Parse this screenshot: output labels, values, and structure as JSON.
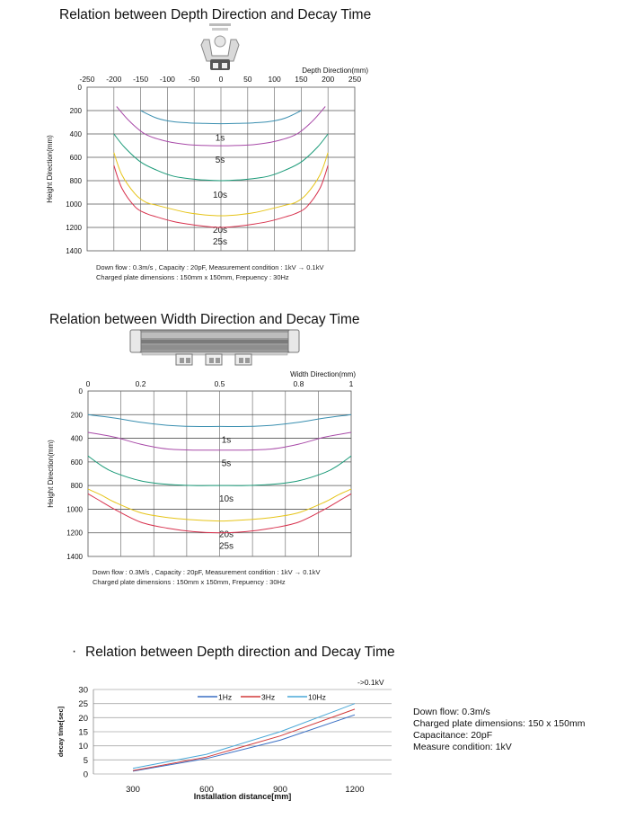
{
  "chart_data": [
    {
      "type": "line",
      "title": "Relation between Depth Direction and Decay Time",
      "xlabel": "Depth Direction(mm)",
      "ylabel": "Height Direction(mm)",
      "xlim": [
        -250,
        250
      ],
      "ylim": [
        0,
        1400
      ],
      "y_inverted": true,
      "x_ticks": [
        -250,
        -200,
        -150,
        -100,
        -50,
        0,
        50,
        100,
        150,
        200,
        250
      ],
      "y_ticks": [
        0,
        200,
        400,
        600,
        800,
        1000,
        1200,
        1400
      ],
      "grid": true,
      "notes": [
        "Down flow : 0.3m/s , Capacity : 20pF, Measurement condition : 1kV → 0.1kV",
        "Charged plate dimensions : 150mm x 150mm, Frepuency : 30Hz"
      ],
      "series": [
        {
          "name": "1s",
          "color": "#3a8fb0",
          "x": [
            -150,
            -120,
            -90,
            -60,
            -30,
            0,
            30,
            60,
            90,
            120,
            150
          ],
          "y": [
            200,
            265,
            295,
            305,
            310,
            312,
            310,
            305,
            295,
            265,
            200
          ]
        },
        {
          "name": "5s",
          "color": "#a84aa8",
          "x": [
            -195,
            -170,
            -140,
            -100,
            -60,
            -20,
            20,
            60,
            100,
            140,
            170,
            195
          ],
          "y": [
            165,
            295,
            405,
            465,
            492,
            500,
            500,
            492,
            465,
            405,
            295,
            165
          ]
        },
        {
          "name": "10s",
          "color": "#1a9a78",
          "x": [
            -200,
            -180,
            -150,
            -120,
            -90,
            -60,
            -30,
            0,
            30,
            60,
            90,
            120,
            150,
            180,
            200
          ],
          "y": [
            400,
            515,
            640,
            710,
            760,
            782,
            795,
            800,
            795,
            782,
            760,
            710,
            640,
            515,
            400
          ]
        },
        {
          "name": "20s",
          "color": "#e6c419",
          "x": [
            -200,
            -185,
            -160,
            -140,
            -120,
            -90,
            -60,
            -30,
            0,
            30,
            60,
            90,
            120,
            140,
            160,
            185,
            200
          ],
          "y": [
            560,
            750,
            915,
            985,
            1010,
            1045,
            1075,
            1093,
            1100,
            1093,
            1075,
            1045,
            1010,
            985,
            915,
            750,
            560
          ]
        },
        {
          "name": "25s",
          "color": "#d8324e",
          "x": [
            -200,
            -185,
            -160,
            -140,
            -120,
            -90,
            -60,
            -30,
            0,
            30,
            60,
            90,
            120,
            140,
            160,
            185,
            200
          ],
          "y": [
            670,
            865,
            1025,
            1080,
            1110,
            1148,
            1172,
            1190,
            1200,
            1190,
            1172,
            1148,
            1110,
            1080,
            1025,
            865,
            670
          ]
        }
      ]
    },
    {
      "type": "line",
      "title": "Relation between Width Direction and Decay Time",
      "xlabel": "Width Direction(mm)",
      "ylabel": "Height Direction(mm)",
      "xlim": [
        0,
        1
      ],
      "ylim": [
        0,
        1400
      ],
      "y_inverted": true,
      "x_ticks": [
        0,
        0.2,
        0.5,
        0.8,
        1
      ],
      "y_ticks": [
        0,
        200,
        400,
        600,
        800,
        1000,
        1200,
        1400
      ],
      "grid": true,
      "notes": [
        "Down flow : 0.3M/s , Capacity : 20pF, Measurement condition : 1kV → 0.1kV",
        "Charged plate dimensions : 150mm x 150mm, Frepuency : 30Hz"
      ],
      "series": [
        {
          "name": "1s",
          "color": "#3a8fb0",
          "x": [
            0,
            0.1,
            0.2,
            0.3,
            0.4,
            0.5,
            0.6,
            0.7,
            0.8,
            0.9,
            1
          ],
          "y": [
            200,
            228,
            265,
            290,
            300,
            300,
            300,
            290,
            265,
            228,
            200
          ]
        },
        {
          "name": "5s",
          "color": "#a84aa8",
          "x": [
            0,
            0.1,
            0.2,
            0.3,
            0.4,
            0.5,
            0.6,
            0.7,
            0.8,
            0.9,
            1
          ],
          "y": [
            350,
            390,
            450,
            490,
            500,
            500,
            500,
            490,
            450,
            390,
            350
          ]
        },
        {
          "name": "10s",
          "color": "#1a9a78",
          "x": [
            0,
            0.05,
            0.1,
            0.2,
            0.3,
            0.4,
            0.5,
            0.6,
            0.7,
            0.8,
            0.9,
            0.95,
            1
          ],
          "y": [
            550,
            630,
            690,
            760,
            790,
            800,
            800,
            800,
            790,
            760,
            690,
            630,
            550
          ]
        },
        {
          "name": "20s",
          "color": "#e6c419",
          "x": [
            0,
            0.05,
            0.1,
            0.2,
            0.3,
            0.4,
            0.5,
            0.6,
            0.7,
            0.8,
            0.9,
            0.95,
            1
          ],
          "y": [
            830,
            880,
            940,
            1030,
            1070,
            1090,
            1100,
            1090,
            1070,
            1030,
            940,
            880,
            830
          ]
        },
        {
          "name": "25s",
          "color": "#d8324e",
          "x": [
            0,
            0.05,
            0.1,
            0.2,
            0.3,
            0.4,
            0.5,
            0.6,
            0.7,
            0.8,
            0.9,
            0.95,
            1
          ],
          "y": [
            870,
            935,
            1000,
            1110,
            1160,
            1190,
            1200,
            1190,
            1160,
            1110,
            1000,
            935,
            870
          ]
        }
      ]
    },
    {
      "type": "line",
      "title": "Relation between Depth direction and Decay Time",
      "bullet": "·",
      "annotation": "->0.1kV",
      "xlabel": "Installation distance[mm]",
      "ylabel": "decay time[sec]",
      "categories": [
        "300",
        "600",
        "900",
        "1200"
      ],
      "ylim": [
        0,
        30
      ],
      "y_ticks": [
        0,
        5,
        10,
        15,
        20,
        25,
        30
      ],
      "grid": true,
      "legend": "top",
      "series": [
        {
          "name": "1Hz",
          "color": "#3a6fc4",
          "values": [
            1,
            5.5,
            12,
            21
          ]
        },
        {
          "name": "3Hz",
          "color": "#d23a3a",
          "values": [
            1.2,
            6,
            13.5,
            23
          ]
        },
        {
          "name": "10Hz",
          "color": "#4aa8d8",
          "values": [
            2,
            7,
            15,
            25
          ]
        }
      ],
      "side_notes": [
        "Down flow: 0.3m/s",
        "Charged plate dimensions: 150 x 150mm",
        "Capacitance: 20pF",
        "Measure condition: 1kV"
      ]
    }
  ]
}
